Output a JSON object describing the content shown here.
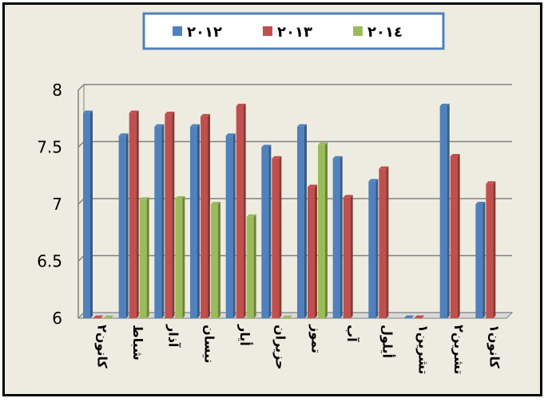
{
  "chart_data": {
    "type": "bar",
    "categories": [
      "كانون٢",
      "شباط",
      "آذار",
      "نيسان",
      "أيار",
      "حزيران",
      "تموز",
      "آب",
      "أيلول",
      "تشرين١",
      "تشرين٢",
      "كانون١"
    ],
    "series": [
      {
        "name": "٢٠١٢",
        "color": "#4f81bd",
        "values": [
          7.8,
          7.6,
          7.68,
          7.68,
          7.6,
          7.5,
          7.68,
          7.4,
          7.2,
          6.0,
          7.86,
          7.0
        ]
      },
      {
        "name": "٢٠١٣",
        "color": "#c0504d",
        "values": [
          6.0,
          7.8,
          7.79,
          7.77,
          7.86,
          7.4,
          7.15,
          7.06,
          7.31,
          6.0,
          7.42,
          7.18
        ]
      },
      {
        "name": "٢٠١٤",
        "color": "#9bbb59",
        "values": [
          6.0,
          7.04,
          7.05,
          7.0,
          6.89,
          6.0,
          7.52,
          null,
          null,
          null,
          null,
          null
        ]
      }
    ],
    "yticks": [
      "8",
      "7.5",
      "7",
      "6.5",
      "6"
    ],
    "ylim": [
      6,
      8
    ],
    "grid": true,
    "legend_position": "top-center",
    "title": "",
    "xlabel": "",
    "ylabel": ""
  }
}
